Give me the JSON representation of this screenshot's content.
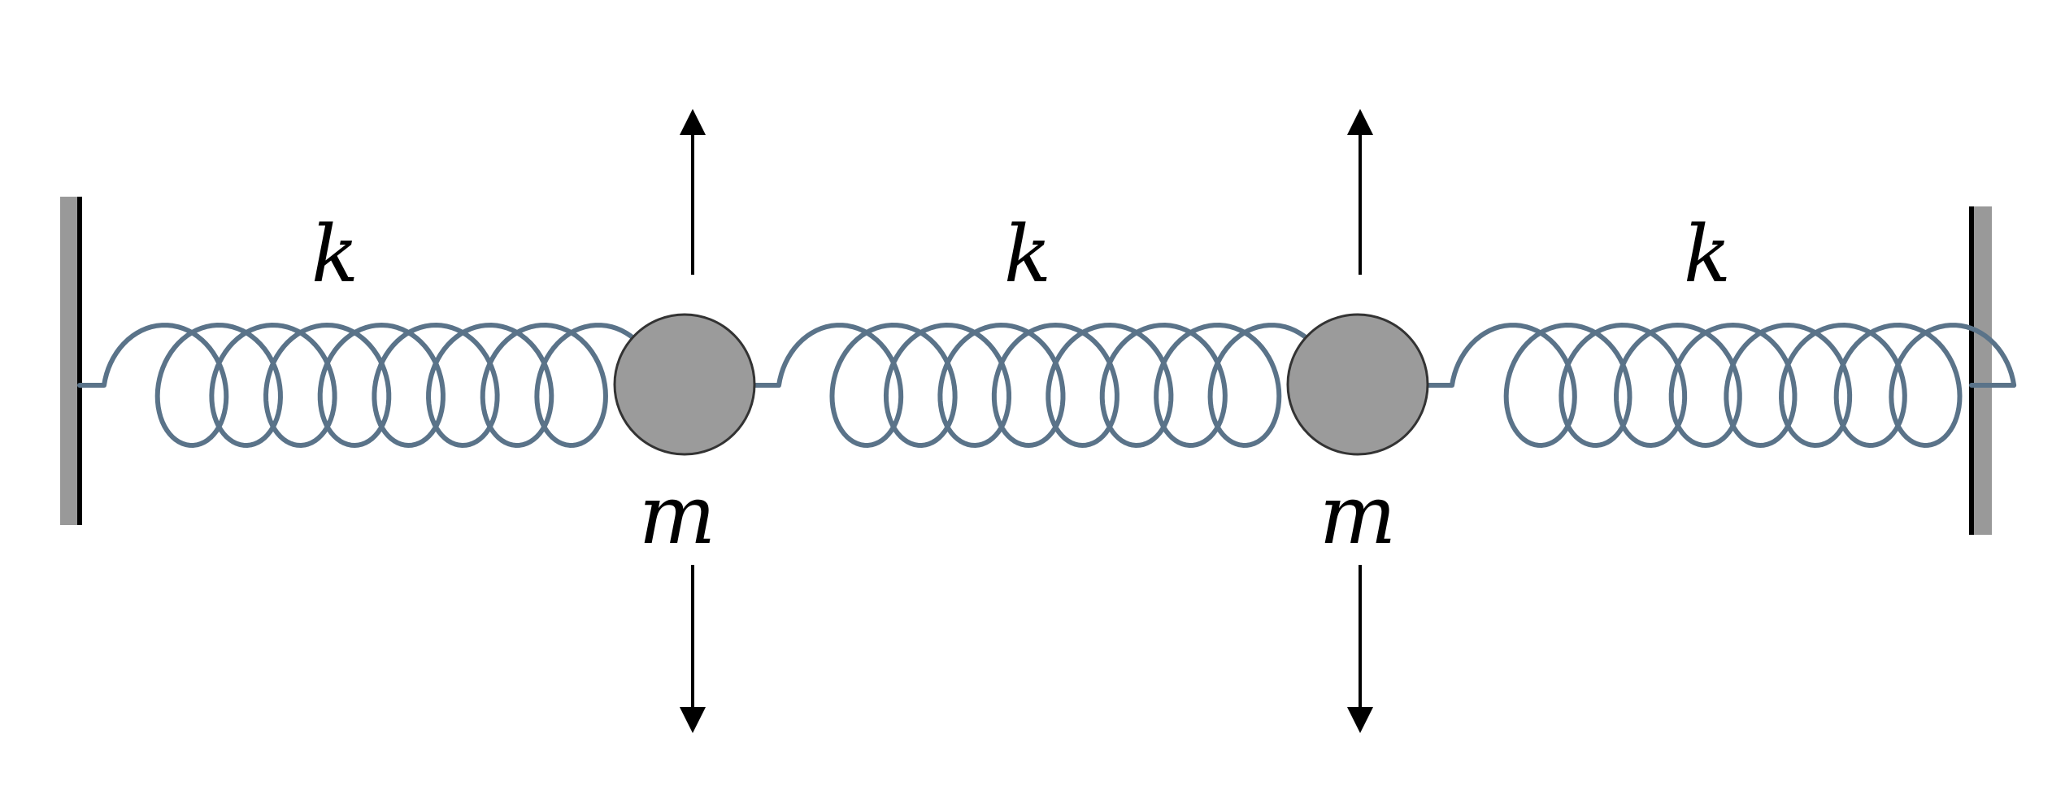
{
  "labels": {
    "spring_left": "k",
    "spring_middle": "k",
    "spring_right": "k",
    "mass_left": "m",
    "mass_right": "m"
  },
  "colors": {
    "spring": "#5a7389",
    "mass_fill": "#9b9b9b",
    "mass_stroke": "#333333",
    "wall_shadow": "#999999",
    "wall_line": "#000000",
    "arrow": "#000000"
  },
  "icons": {
    "up_arrow": "arrow-up-icon",
    "down_arrow": "arrow-down-icon"
  }
}
